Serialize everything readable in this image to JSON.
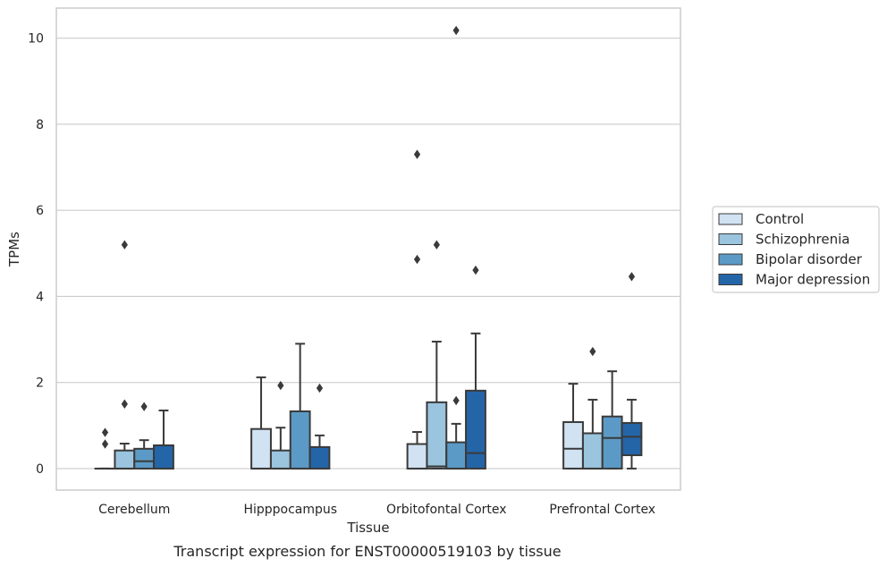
{
  "chart_data": {
    "type": "box",
    "title": "",
    "caption": "Transcript expression for ENST00000519103 by tissue",
    "xlabel": "Tissue",
    "ylabel": "TPMs",
    "ylim": [
      -0.5,
      10.7
    ],
    "yticks": [
      0,
      2,
      4,
      6,
      8,
      10
    ],
    "grid": "horizontal",
    "legend_position": "right",
    "categories": [
      "Cerebellum",
      "Hipppocampus",
      "Orbitofontal Cortex",
      "Prefrontal Cortex"
    ],
    "series": [
      {
        "name": "Control",
        "color": "#d1e2f2",
        "boxes": [
          {
            "q1": 0,
            "median": 0,
            "q3": 0,
            "whisker_low": 0,
            "whisker_high": 0,
            "outliers": [
              0.57,
              0.84
            ]
          },
          {
            "q1": 0,
            "median": 0,
            "q3": 0.92,
            "whisker_low": 0,
            "whisker_high": 2.12,
            "outliers": []
          },
          {
            "q1": 0,
            "median": 0,
            "q3": 0.57,
            "whisker_low": 0,
            "whisker_high": 0.85,
            "outliers": [
              4.86,
              7.3
            ]
          },
          {
            "q1": 0,
            "median": 0.46,
            "q3": 1.08,
            "whisker_low": 0,
            "whisker_high": 1.97,
            "outliers": []
          }
        ]
      },
      {
        "name": "Schizophrenia",
        "color": "#9bc4de",
        "boxes": [
          {
            "q1": 0,
            "median": 0,
            "q3": 0.42,
            "whisker_low": 0,
            "whisker_high": 0.58,
            "outliers": [
              1.5,
              5.2
            ]
          },
          {
            "q1": 0,
            "median": 0,
            "q3": 0.42,
            "whisker_low": 0,
            "whisker_high": 0.95,
            "outliers": [
              1.93
            ]
          },
          {
            "q1": 0,
            "median": 0.05,
            "q3": 1.54,
            "whisker_low": 0,
            "whisker_high": 2.95,
            "outliers": [
              5.2
            ]
          },
          {
            "q1": 0,
            "median": 0,
            "q3": 0.82,
            "whisker_low": 0,
            "whisker_high": 1.6,
            "outliers": [
              2.72
            ]
          }
        ]
      },
      {
        "name": "Bipolar disorder",
        "color": "#5b9ac6",
        "boxes": [
          {
            "q1": 0,
            "median": 0.17,
            "q3": 0.46,
            "whisker_low": 0,
            "whisker_high": 0.66,
            "outliers": [
              1.44
            ]
          },
          {
            "q1": 0,
            "median": 0,
            "q3": 1.33,
            "whisker_low": 0,
            "whisker_high": 2.9,
            "outliers": []
          },
          {
            "q1": 0,
            "median": 0,
            "q3": 0.61,
            "whisker_low": 0,
            "whisker_high": 1.04,
            "outliers": [
              1.58,
              10.18
            ]
          },
          {
            "q1": 0,
            "median": 0.71,
            "q3": 1.21,
            "whisker_low": 0,
            "whisker_high": 2.26,
            "outliers": []
          }
        ]
      },
      {
        "name": "Major depression",
        "color": "#2465a8",
        "boxes": [
          {
            "q1": 0,
            "median": 0,
            "q3": 0.54,
            "whisker_low": 0,
            "whisker_high": 1.35,
            "outliers": []
          },
          {
            "q1": 0,
            "median": 0,
            "q3": 0.5,
            "whisker_low": 0,
            "whisker_high": 0.77,
            "outliers": [
              1.87
            ]
          },
          {
            "q1": 0,
            "median": 0.36,
            "q3": 1.81,
            "whisker_low": 0,
            "whisker_high": 3.14,
            "outliers": [
              4.61
            ]
          },
          {
            "q1": 0.31,
            "median": 0.74,
            "q3": 1.06,
            "whisker_low": 0,
            "whisker_high": 1.6,
            "outliers": [
              4.46
            ]
          }
        ]
      }
    ]
  }
}
